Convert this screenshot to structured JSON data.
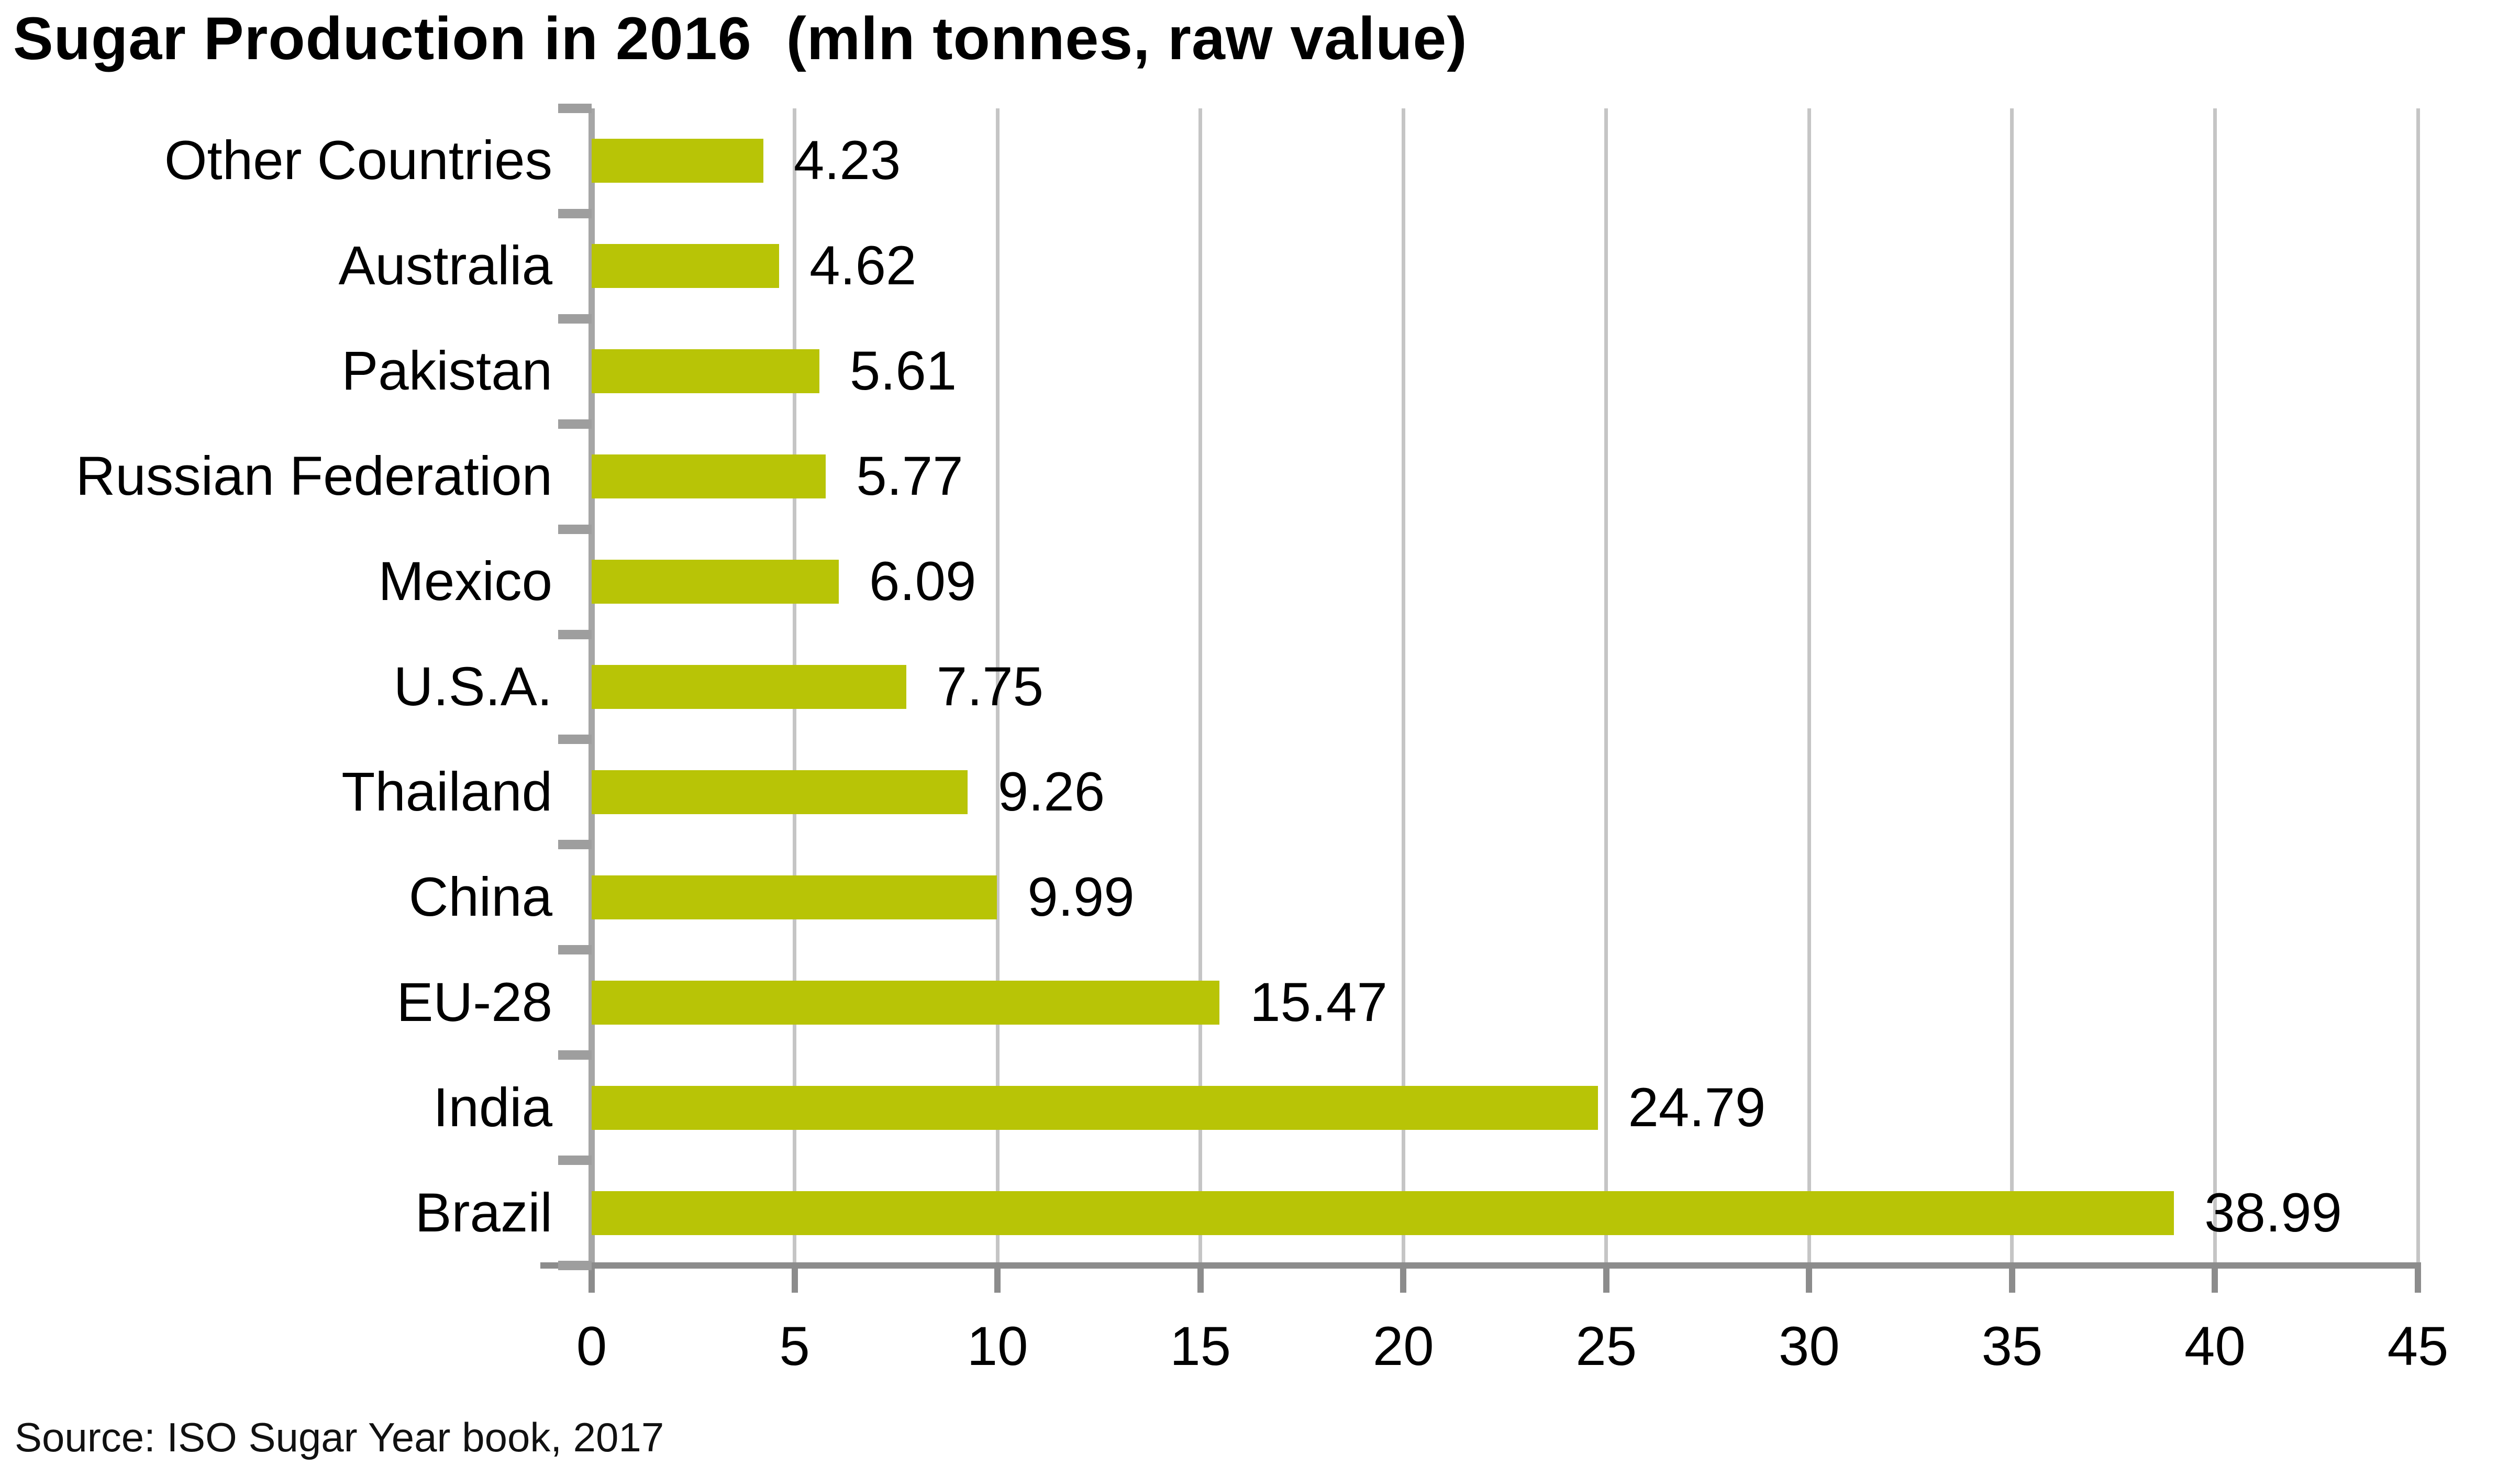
{
  "chart_data": {
    "type": "bar",
    "orientation": "horizontal",
    "title": "Sugar Production in 2016  (mln tonnes, raw value)",
    "categories": [
      "Other Countries",
      "Australia",
      "Pakistan",
      "Russian Federation",
      "Mexico",
      "U.S.A.",
      "Thailand",
      "China",
      "EU-28",
      "India",
      "Brazil"
    ],
    "values": [
      4.23,
      4.62,
      5.61,
      5.77,
      6.09,
      7.75,
      9.26,
      9.99,
      15.47,
      24.79,
      38.99
    ],
    "value_labels": [
      "4.23",
      "4.62",
      "5.61",
      "5.77",
      "6.09",
      "7.75",
      "9.26",
      "9.99",
      "15.47",
      "24.79",
      "38.99"
    ],
    "xlabel": "",
    "ylabel": "",
    "xlim": [
      0,
      45
    ],
    "x_ticks": [
      0,
      5,
      10,
      15,
      20,
      25,
      30,
      35,
      40,
      45
    ],
    "grid": true,
    "legend": "none",
    "bar_color": "#b8c406",
    "x_axis_color": "#8c8c8c",
    "y_axis_color": "#a6a6a6",
    "gridline_color": "#c5c5c5"
  },
  "source_note": "Source: ISO Sugar Year book, 2017"
}
